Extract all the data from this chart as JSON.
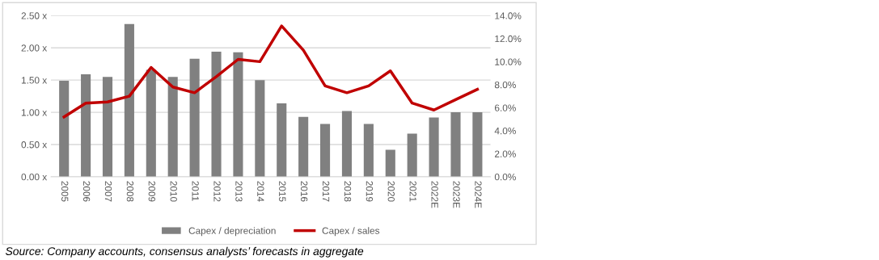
{
  "chart_data": {
    "type": "bar",
    "categories": [
      "2005",
      "2006",
      "2007",
      "2008",
      "2009",
      "2010",
      "2011",
      "2012",
      "2013",
      "2014",
      "2015",
      "2016",
      "2017",
      "2018",
      "2019",
      "2020",
      "2021",
      "2022E",
      "2023E",
      "2024E"
    ],
    "series": [
      {
        "name": "Capex / depreciation",
        "color": "#808080",
        "values": [
          1.49,
          1.59,
          1.55,
          2.37,
          1.66,
          1.55,
          1.83,
          1.94,
          1.93,
          1.5,
          1.14,
          0.93,
          0.82,
          1.02,
          0.82,
          0.42,
          0.67,
          0.92,
          1.0,
          1.0
        ]
      },
      {
        "name": "Capex / sales",
        "color": "#c00000",
        "type": "line",
        "axis": "y2",
        "values": [
          5.2,
          6.4,
          6.5,
          7.0,
          9.5,
          7.8,
          7.3,
          8.7,
          10.2,
          10.0,
          13.1,
          11.0,
          7.9,
          7.3,
          7.9,
          9.2,
          6.4,
          5.8,
          6.7,
          7.6
        ]
      }
    ],
    "ylim": [
      0,
      2.5
    ],
    "yticks": [
      {
        "value": 0,
        "label": "0.00 x"
      },
      {
        "value": 0.5,
        "label": "0.50 x"
      },
      {
        "value": 1,
        "label": "1.00 x"
      },
      {
        "value": 1.5,
        "label": "1.50 x"
      },
      {
        "value": 2,
        "label": "2.00 x"
      },
      {
        "value": 2.5,
        "label": "2.50 x"
      }
    ],
    "y2lim": [
      0,
      14
    ],
    "y2ticks": [
      {
        "value": 0,
        "label": "0.0%"
      },
      {
        "value": 2,
        "label": "2.0%"
      },
      {
        "value": 4,
        "label": "4.0%"
      },
      {
        "value": 6,
        "label": "6.0%"
      },
      {
        "value": 8,
        "label": "8.0%"
      },
      {
        "value": 10,
        "label": "10.0%"
      },
      {
        "value": 12,
        "label": "12.0%"
      },
      {
        "value": 14,
        "label": "14.0%"
      }
    ],
    "grid": "y",
    "legend": "bottom",
    "annotations": [
      "Source: Company accounts, consensus analysts’ forecasts in aggregate"
    ]
  }
}
